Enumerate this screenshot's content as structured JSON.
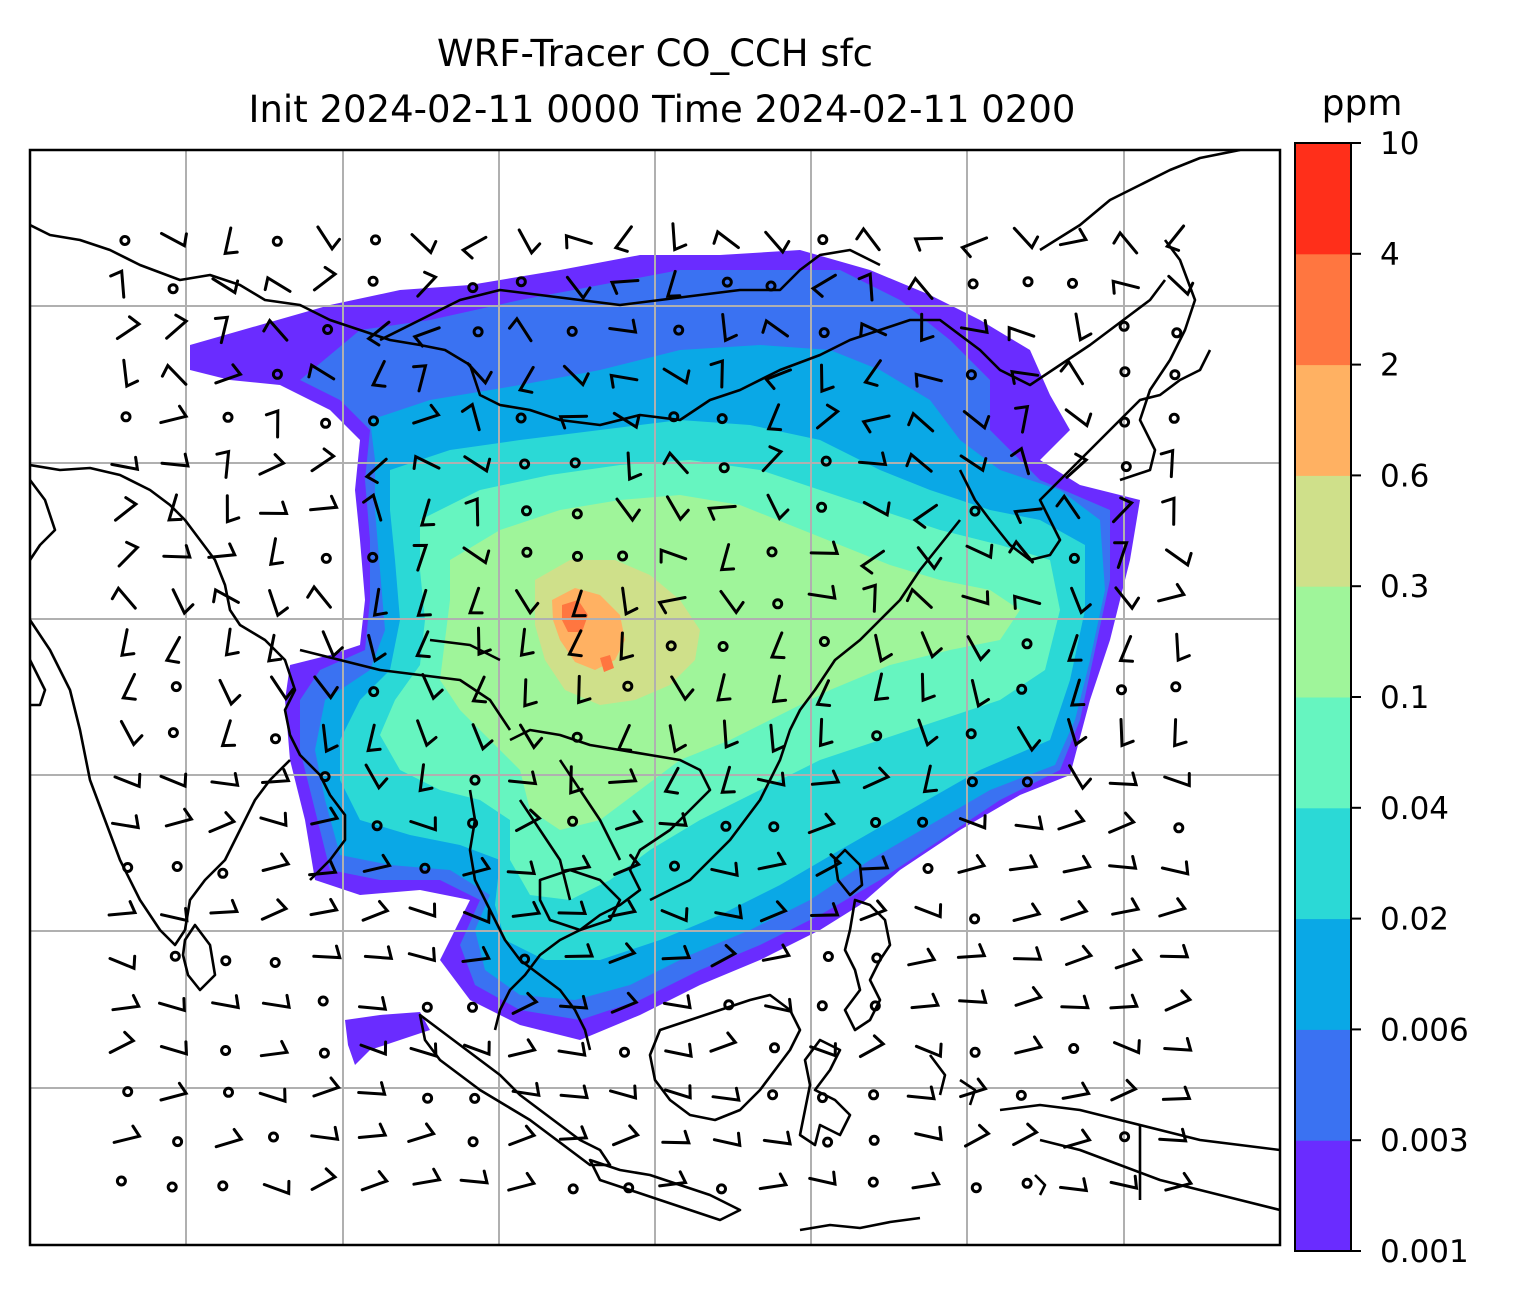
{
  "title": {
    "line1": "WRF-Tracer CO_CCH sfc",
    "line2": "Init 2024-02-11 0000 Time 2024-02-11 0200"
  },
  "colorbar": {
    "unit": "ppm",
    "ticks": [
      "0.001",
      "0.003",
      "0.006",
      "0.02",
      "0.04",
      "0.1",
      "0.3",
      "0.6",
      "2",
      "4",
      "10"
    ],
    "colors": [
      "#6a2cff",
      "#3a72f2",
      "#0aa8e6",
      "#2bd9d6",
      "#66f5c0",
      "#9ff59a",
      "#cfe08a",
      "#ffb162",
      "#ff7640",
      "#ff2f1a"
    ]
  },
  "map": {
    "land_color": "#ffffff",
    "coastline_color": "#000000",
    "gridline_color": "#b0b0b0",
    "wind_barbs": "black"
  }
}
